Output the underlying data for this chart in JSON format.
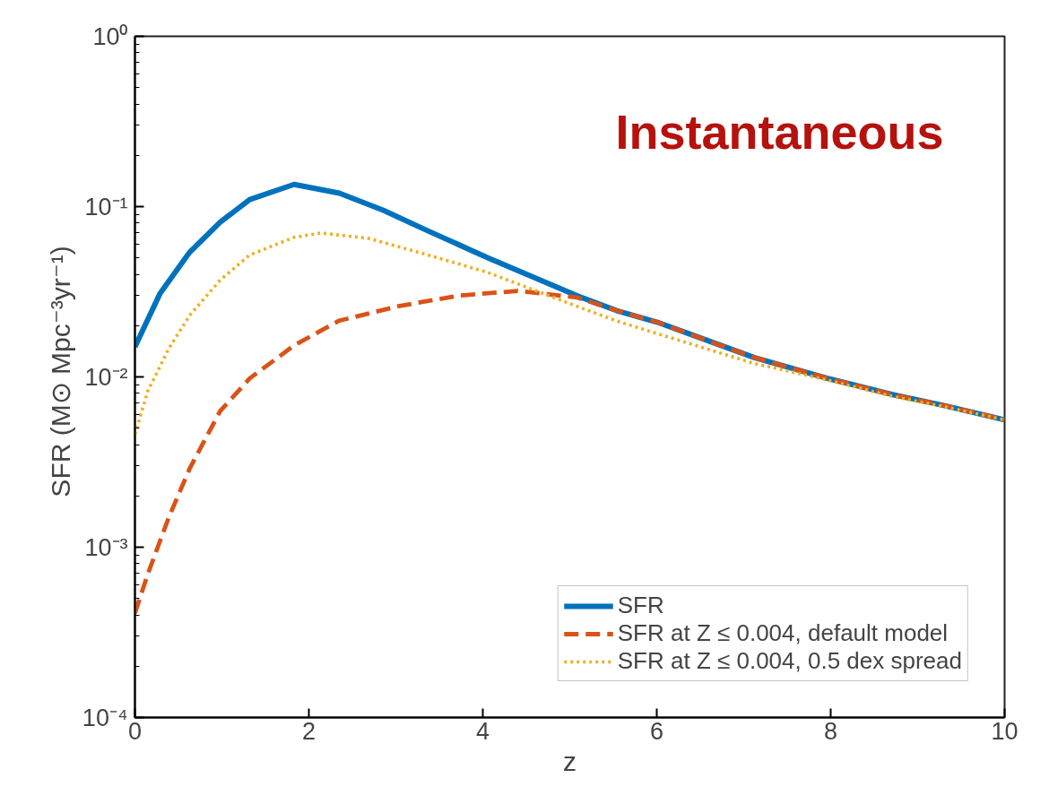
{
  "chart_data": {
    "type": "line",
    "xlabel": "z",
    "ylabel": "SFR (M⊙ Mpc⁻³yr⁻¹)",
    "log": "y",
    "grid": false,
    "legend": "bottom right",
    "annotations": [
      "Instantaneous"
    ],
    "xlim": [
      0,
      10
    ],
    "xticks": [
      0,
      2,
      4,
      6,
      8,
      10
    ],
    "ylim": [
      0.0001,
      1
    ],
    "yticks": [
      {
        "value": 0.0001,
        "label": "10⁻⁴"
      },
      {
        "value": 0.001,
        "label": "10⁻³"
      },
      {
        "value": 0.01,
        "label": "10⁻²"
      },
      {
        "value": 0.1,
        "label": "10⁻¹"
      },
      {
        "value": 1,
        "label": "10⁰"
      }
    ],
    "series": [
      {
        "name": "SFR",
        "color": "#0072bd",
        "line_style": "solid",
        "x": [
          0,
          0.29,
          0.63,
          0.98,
          1.32,
          1.83,
          2.35,
          2.86,
          3.37,
          4.06,
          5.08,
          5.54,
          6,
          7.12,
          8,
          8.7,
          9.3,
          10
        ],
        "values": [
          0.015,
          0.031,
          0.054,
          0.081,
          0.11,
          0.135,
          0.12,
          0.095,
          0.072,
          0.05,
          0.03,
          0.0245,
          0.021,
          0.013,
          0.0097,
          0.0079,
          0.0068,
          0.0056
        ]
      },
      {
        "name": "SFR at Z ≤ 0.004, default model",
        "color": "#d95319",
        "line_style": "dashed",
        "x": [
          0,
          0.15,
          0.39,
          0.63,
          0.98,
          1.32,
          1.83,
          2.35,
          3.03,
          3.72,
          4.4,
          5.08,
          5.54,
          6,
          7.12,
          8,
          8.7,
          9.3,
          10
        ],
        "values": [
          0.00041,
          0.0007,
          0.0015,
          0.0029,
          0.0063,
          0.0098,
          0.0153,
          0.0214,
          0.026,
          0.03,
          0.032,
          0.0293,
          0.0245,
          0.021,
          0.013,
          0.0097,
          0.0079,
          0.0068,
          0.0056
        ]
      },
      {
        "name": "SFR at Z ≤ 0.004, 0.5 dex spread",
        "color": "#edb120",
        "line_style": "dotted",
        "x": [
          0,
          0.15,
          0.39,
          0.63,
          0.98,
          1.32,
          1.83,
          2.14,
          2.69,
          3.37,
          4.06,
          5.08,
          5.54,
          6,
          7.12,
          8,
          8.7,
          9.3,
          10
        ],
        "values": [
          0.0046,
          0.0083,
          0.0147,
          0.023,
          0.037,
          0.052,
          0.066,
          0.07,
          0.065,
          0.052,
          0.041,
          0.026,
          0.0213,
          0.018,
          0.012,
          0.0095,
          0.0077,
          0.0067,
          0.0056
        ]
      }
    ]
  }
}
